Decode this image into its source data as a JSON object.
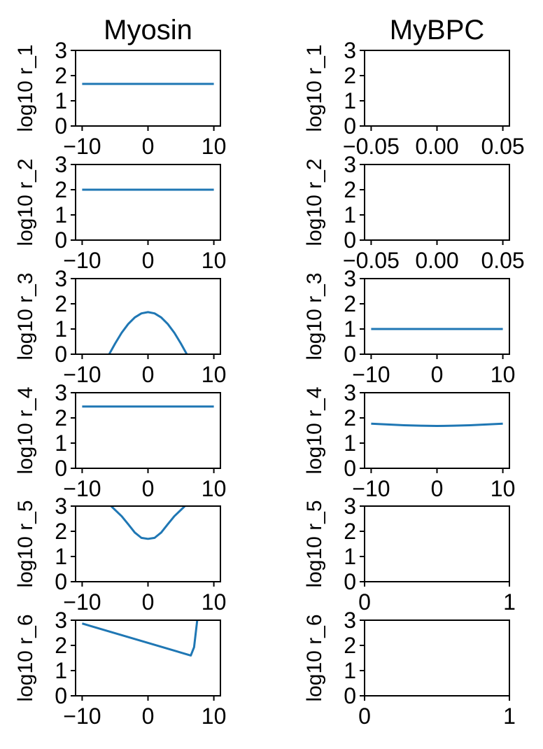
{
  "chart_data": [
    {
      "type": "line",
      "title": "Myosin",
      "ylabel": "log10 r_1",
      "xlim": [
        -11,
        11
      ],
      "ylim": [
        0,
        3
      ],
      "xticks": [
        -10,
        0,
        10
      ],
      "xtick_labels": [
        "−10",
        "0",
        "10"
      ],
      "yticks": [
        0,
        1,
        2,
        3
      ],
      "ytick_labels": [
        "0",
        "1",
        "2",
        "3"
      ],
      "color": "#1f77b4",
      "series": [
        {
          "x": [
            -10,
            -5,
            0,
            5,
            10
          ],
          "y": [
            1.67,
            1.67,
            1.67,
            1.67,
            1.67
          ]
        }
      ]
    },
    {
      "type": "line",
      "title": "MyBPC",
      "ylabel": "log10 r_1",
      "xlim": [
        -0.055,
        0.055
      ],
      "ylim": [
        0,
        3
      ],
      "xticks": [
        -0.05,
        0,
        0.05
      ],
      "xtick_labels": [
        "−0.05",
        "0.00",
        "0.05"
      ],
      "yticks": [
        0,
        1,
        2,
        3
      ],
      "ytick_labels": [
        "0",
        "1",
        "2",
        "3"
      ],
      "color": "#1f77b4",
      "series": []
    },
    {
      "type": "line",
      "title": "",
      "ylabel": "log10 r_2",
      "xlim": [
        -11,
        11
      ],
      "ylim": [
        0,
        3
      ],
      "xticks": [
        -10,
        0,
        10
      ],
      "xtick_labels": [
        "−10",
        "0",
        "10"
      ],
      "yticks": [
        0,
        1,
        2,
        3
      ],
      "ytick_labels": [
        "0",
        "1",
        "2",
        "3"
      ],
      "color": "#1f77b4",
      "series": [
        {
          "x": [
            -10,
            -5,
            0,
            5,
            10
          ],
          "y": [
            2.0,
            2.0,
            2.0,
            2.0,
            2.0
          ]
        }
      ]
    },
    {
      "type": "line",
      "title": "",
      "ylabel": "log10 r_2",
      "xlim": [
        -0.055,
        0.055
      ],
      "ylim": [
        0,
        3
      ],
      "xticks": [
        -0.05,
        0,
        0.05
      ],
      "xtick_labels": [
        "−0.05",
        "0.00",
        "0.05"
      ],
      "yticks": [
        0,
        1,
        2,
        3
      ],
      "ytick_labels": [
        "0",
        "1",
        "2",
        "3"
      ],
      "color": "#1f77b4",
      "series": []
    },
    {
      "type": "line",
      "title": "",
      "ylabel": "log10 r_3",
      "xlim": [
        -11,
        11
      ],
      "ylim": [
        0,
        3
      ],
      "xticks": [
        -10,
        0,
        10
      ],
      "xtick_labels": [
        "−10",
        "0",
        "10"
      ],
      "yticks": [
        0,
        1,
        2,
        3
      ],
      "ytick_labels": [
        "0",
        "1",
        "2",
        "3"
      ],
      "color": "#1f77b4",
      "series": [
        {
          "x": [
            -6,
            -5,
            -4,
            -3,
            -2,
            -1,
            0,
            1,
            2,
            3,
            4,
            5,
            6
          ],
          "y": [
            -0.05,
            0.42,
            0.85,
            1.2,
            1.46,
            1.62,
            1.67,
            1.62,
            1.46,
            1.2,
            0.85,
            0.42,
            -0.05
          ]
        }
      ]
    },
    {
      "type": "line",
      "title": "",
      "ylabel": "log10 r_3",
      "xlim": [
        -11,
        11
      ],
      "ylim": [
        0,
        3
      ],
      "xticks": [
        -10,
        0,
        10
      ],
      "xtick_labels": [
        "−10",
        "0",
        "10"
      ],
      "yticks": [
        0,
        1,
        2,
        3
      ],
      "ytick_labels": [
        "0",
        "1",
        "2",
        "3"
      ],
      "color": "#1f77b4",
      "series": [
        {
          "x": [
            -10,
            -5,
            0,
            5,
            10
          ],
          "y": [
            1.0,
            1.0,
            1.0,
            1.0,
            1.0
          ]
        }
      ]
    },
    {
      "type": "line",
      "title": "",
      "ylabel": "log10 r_4",
      "xlim": [
        -11,
        11
      ],
      "ylim": [
        0,
        3
      ],
      "xticks": [
        -10,
        0,
        10
      ],
      "xtick_labels": [
        "−10",
        "0",
        "10"
      ],
      "yticks": [
        0,
        1,
        2,
        3
      ],
      "ytick_labels": [
        "0",
        "1",
        "2",
        "3"
      ],
      "color": "#1f77b4",
      "series": [
        {
          "x": [
            -10,
            -5,
            0,
            5,
            10
          ],
          "y": [
            2.45,
            2.45,
            2.45,
            2.45,
            2.45
          ]
        }
      ]
    },
    {
      "type": "line",
      "title": "",
      "ylabel": "log10 r_4",
      "xlim": [
        -11,
        11
      ],
      "ylim": [
        0,
        3
      ],
      "xticks": [
        -10,
        0,
        10
      ],
      "xtick_labels": [
        "−10",
        "0",
        "10"
      ],
      "yticks": [
        0,
        1,
        2,
        3
      ],
      "ytick_labels": [
        "0",
        "1",
        "2",
        "3"
      ],
      "color": "#1f77b4",
      "series": [
        {
          "x": [
            -10,
            -7.5,
            -5,
            -2.5,
            0,
            2.5,
            5,
            7.5,
            10
          ],
          "y": [
            1.77,
            1.74,
            1.71,
            1.69,
            1.68,
            1.69,
            1.71,
            1.74,
            1.77
          ]
        }
      ]
    },
    {
      "type": "line",
      "title": "",
      "ylabel": "log10 r_5",
      "xlim": [
        -11,
        11
      ],
      "ylim": [
        0,
        3
      ],
      "xticks": [
        -10,
        0,
        10
      ],
      "xtick_labels": [
        "−10",
        "0",
        "10"
      ],
      "yticks": [
        0,
        1,
        2,
        3
      ],
      "ytick_labels": [
        "0",
        "1",
        "2",
        "3"
      ],
      "color": "#1f77b4",
      "series": [
        {
          "x": [
            -5.8,
            -5,
            -4,
            -3,
            -2,
            -1,
            0,
            1,
            2,
            3,
            4,
            5,
            5.8
          ],
          "y": [
            3.05,
            2.85,
            2.6,
            2.28,
            1.95,
            1.74,
            1.7,
            1.74,
            1.95,
            2.28,
            2.6,
            2.85,
            3.05
          ]
        }
      ]
    },
    {
      "type": "line",
      "title": "",
      "ylabel": "log10 r_5",
      "xlim": [
        0,
        1
      ],
      "ylim": [
        0,
        3
      ],
      "xticks": [
        0,
        1
      ],
      "xtick_labels": [
        "0",
        "1"
      ],
      "yticks": [
        0,
        1,
        2,
        3
      ],
      "ytick_labels": [
        "0",
        "1",
        "2",
        "3"
      ],
      "color": "#1f77b4",
      "series": []
    },
    {
      "type": "line",
      "title": "",
      "ylabel": "log10 r_6",
      "xlim": [
        -11,
        11
      ],
      "ylim": [
        0,
        3
      ],
      "xticks": [
        -10,
        0,
        10
      ],
      "xtick_labels": [
        "−10",
        "0",
        "10"
      ],
      "yticks": [
        0,
        1,
        2,
        3
      ],
      "ytick_labels": [
        "0",
        "1",
        "2",
        "3"
      ],
      "color": "#1f77b4",
      "series": [
        {
          "x": [
            -10,
            6.5,
            7.0,
            7.5
          ],
          "y": [
            2.87,
            1.6,
            1.93,
            3.05
          ]
        }
      ]
    },
    {
      "type": "line",
      "title": "",
      "ylabel": "log10 r_6",
      "xlim": [
        0,
        1
      ],
      "ylim": [
        0,
        3
      ],
      "xticks": [
        0,
        1
      ],
      "xtick_labels": [
        "0",
        "1"
      ],
      "yticks": [
        0,
        1,
        2,
        3
      ],
      "ytick_labels": [
        "0",
        "1",
        "2",
        "3"
      ],
      "color": "#1f77b4",
      "series": []
    }
  ]
}
